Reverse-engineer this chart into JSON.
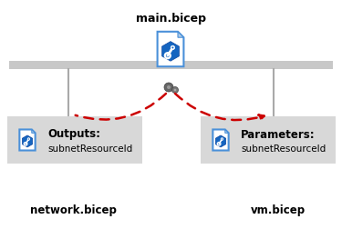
{
  "bg_color": "#ffffff",
  "title_main": "main.bicep",
  "label_left": "network.bicep",
  "label_right": "vm.bicep",
  "box_left_label1": "Outputs:",
  "box_left_label2": "subnetResourceId",
  "box_right_label1": "Parameters:",
  "box_right_label2": "subnetResourceId",
  "bar_color": "#c8c8c8",
  "box_color": "#d8d8d8",
  "arrow_color": "#cc0000",
  "text_color": "#000000",
  "line_color": "#aaaaaa",
  "doc_edge_color": "#4a90d9",
  "doc_face_color": "#ffffff",
  "doc_fold_color": "#b0cce8",
  "hex_color": "#1565c0",
  "gear_color": "#555555"
}
